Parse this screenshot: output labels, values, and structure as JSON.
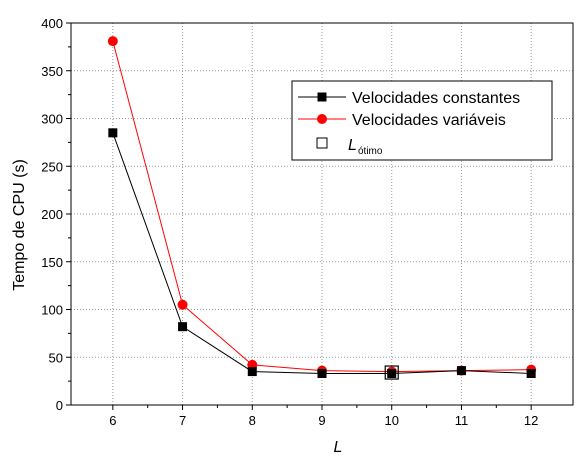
{
  "chart_data": {
    "type": "line",
    "xlabel": "L",
    "ylabel": "Tempo de CPU (s)",
    "x": [
      6,
      7,
      8,
      9,
      10,
      11,
      12
    ],
    "xlim": [
      5.4,
      12.6
    ],
    "ylim": [
      0,
      400
    ],
    "xticks": [
      6,
      7,
      8,
      9,
      10,
      11,
      12
    ],
    "yticks": [
      0,
      50,
      100,
      150,
      200,
      250,
      300,
      350,
      400
    ],
    "grid": true,
    "legend_placement": "top-right",
    "series": [
      {
        "name": "Velocidades constantes",
        "values": [
          285,
          82,
          35,
          33,
          33,
          36,
          33
        ],
        "color": "#000000",
        "marker": "square"
      },
      {
        "name": "Velocidades variáveis",
        "values": [
          381,
          105,
          42,
          36,
          35,
          36,
          37
        ],
        "color": "#ff0000",
        "marker": "circle"
      }
    ],
    "optimum": {
      "label_main": "L",
      "label_sub": "ótimo",
      "marker": "open-square",
      "x": 10,
      "y": 34
    }
  }
}
